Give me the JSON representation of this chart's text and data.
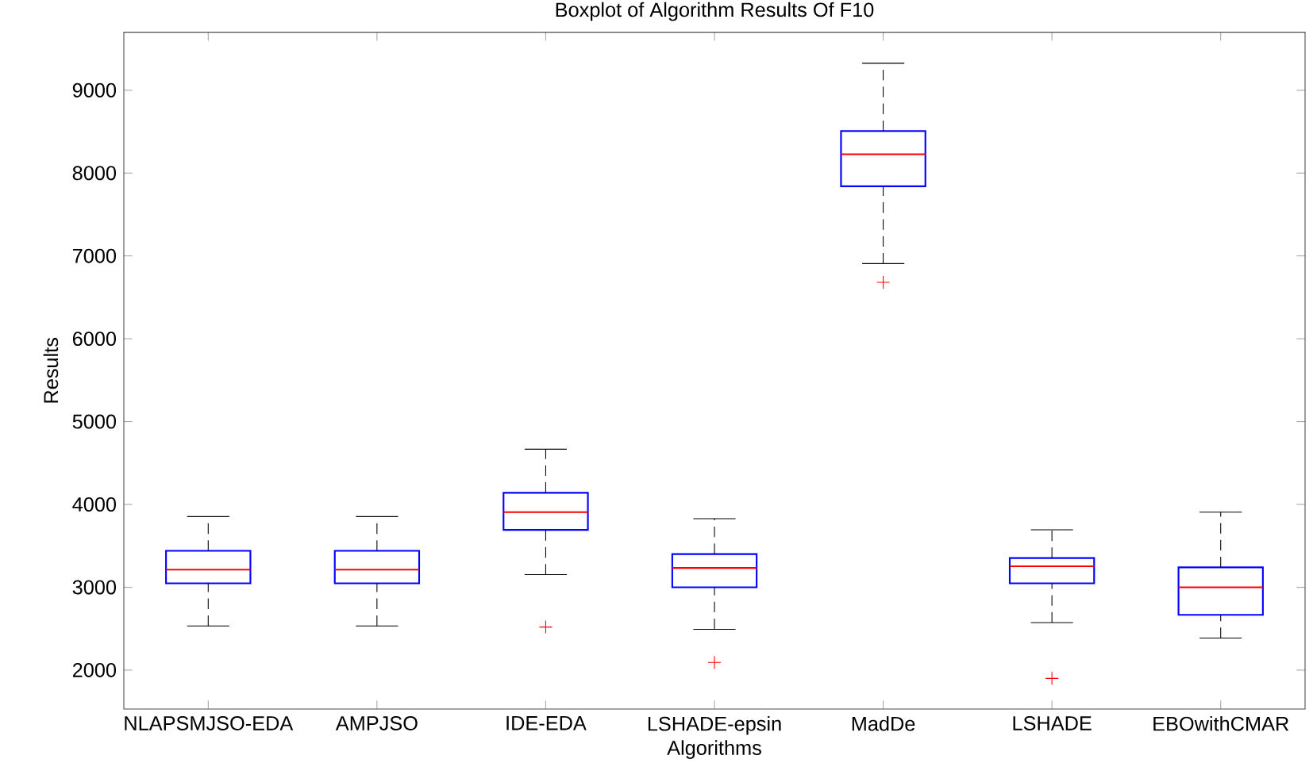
{
  "chart_data": {
    "type": "box",
    "title": "Boxplot of Algorithm Results Of F10",
    "xlabel": "Algorithms",
    "ylabel": "Results",
    "categories": [
      "NLAPSMJSO-EDA",
      "AMPJSO",
      "IDE-EDA",
      "LSHADE-epsin",
      "MadDe",
      "LSHADE",
      "EBOwithCMAR"
    ],
    "ylim": [
      1530,
      9700
    ],
    "yticks": [
      2000,
      3000,
      4000,
      5000,
      6000,
      7000,
      8000,
      9000
    ],
    "series": [
      {
        "color": "#0000ff",
        "boxes": [
          {
            "low": 2533,
            "q1": 3047,
            "median": 3213,
            "q3": 3440,
            "high": 3853
          },
          {
            "low": 2533,
            "q1": 3047,
            "median": 3213,
            "q3": 3440,
            "high": 3853
          },
          {
            "low": 3153,
            "q1": 3693,
            "median": 3907,
            "q3": 4140,
            "high": 4667,
            "outliers": [
              2520
            ]
          },
          {
            "low": 2493,
            "q1": 3000,
            "median": 3233,
            "q3": 3400,
            "high": 3827,
            "outliers": [
              2093
            ]
          },
          {
            "low": 6907,
            "q1": 7840,
            "median": 8227,
            "q3": 8507,
            "high": 9327,
            "outliers": [
              6680
            ]
          },
          {
            "low": 2573,
            "q1": 3047,
            "median": 3253,
            "q3": 3353,
            "high": 3693,
            "outliers": [
              1900
            ]
          },
          {
            "low": 2387,
            "q1": 2667,
            "median": 3000,
            "q3": 3240,
            "high": 3907
          }
        ]
      }
    ]
  }
}
